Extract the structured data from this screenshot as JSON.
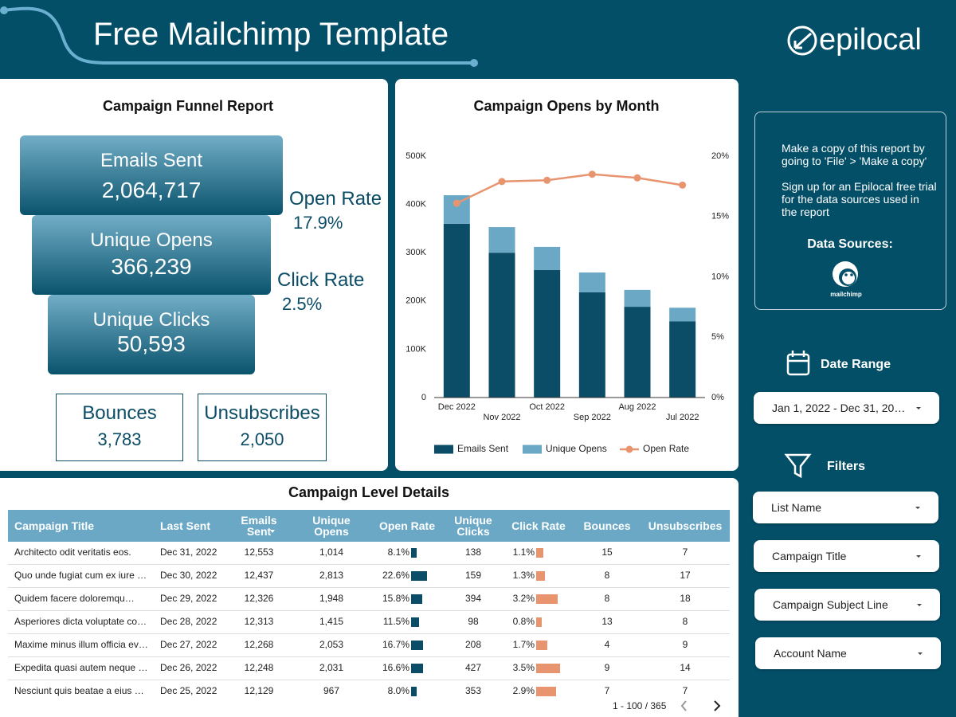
{
  "header": {
    "title": "Free Mailchimp Template",
    "logo": "epilocal"
  },
  "funnel": {
    "title": "Campaign Funnel Report",
    "stages": [
      {
        "label": "Emails Sent",
        "value": "2,064,717"
      },
      {
        "label": "Unique Opens",
        "value": "366,239"
      },
      {
        "label": "Unique Clicks",
        "value": "50,593"
      }
    ],
    "rates": [
      {
        "label": "Open Rate",
        "value": "17.9%"
      },
      {
        "label": "Click Rate",
        "value": "2.5%"
      }
    ],
    "totals": [
      {
        "label": "Bounces",
        "value": "3,783"
      },
      {
        "label": "Unsubscribes",
        "value": "2,050"
      }
    ]
  },
  "chart_data": {
    "type": "bar",
    "title": "Campaign Opens by Month",
    "stacked": true,
    "categories": [
      "Dec 2022",
      "Nov 2022",
      "Oct 2022",
      "Sep 2022",
      "Aug 2022",
      "Jul 2022"
    ],
    "series": [
      {
        "name": "Emails Sent",
        "color": "#0b4d66",
        "values": [
          360000,
          300000,
          264000,
          218000,
          188000,
          158000
        ]
      },
      {
        "name": "Unique Opens",
        "color": "#6aa8c6",
        "values": [
          59000,
          53000,
          48000,
          41000,
          35000,
          28000
        ]
      },
      {
        "name": "Open Rate",
        "type": "line",
        "axis": "y2",
        "color": "#e8956f",
        "values": [
          16.1,
          17.9,
          18.0,
          18.5,
          18.2,
          17.6
        ]
      }
    ],
    "ylim": [
      0,
      500000
    ],
    "yticks": [
      0,
      {
        "value": 100000,
        "label": "100K"
      },
      {
        "value": 200000,
        "label": "200K"
      },
      {
        "value": 300000,
        "label": "300K"
      },
      {
        "value": 400000,
        "label": "400K"
      },
      {
        "value": 500000,
        "label": "500K"
      }
    ],
    "y2lim": [
      0,
      20
    ],
    "y2ticks": [
      {
        "value": 0,
        "label": "0%"
      },
      {
        "value": 5,
        "label": "5%"
      },
      {
        "value": 10,
        "label": "10%"
      },
      {
        "value": 15,
        "label": "15%"
      },
      {
        "value": 20,
        "label": "20%"
      }
    ],
    "grid": false,
    "legend": "bottom"
  },
  "table": {
    "title": "Campaign Level Details",
    "columns": [
      "Campaign Title",
      "Last Sent",
      "Emails Sent",
      "Unique Opens",
      "Open Rate",
      "Unique Clicks",
      "Click Rate",
      "Bounces",
      "Unsubscribes"
    ],
    "rows": [
      [
        "Architecto odit veritatis eos.",
        "Dec 31, 2022",
        "12,553",
        "1,014",
        "8.1%",
        "138",
        "1.1%",
        "15",
        "7"
      ],
      [
        "Quo unde fugiat cum ex iure …",
        "Dec 30, 2022",
        "12,437",
        "2,813",
        "22.6%",
        "159",
        "1.3%",
        "8",
        "17"
      ],
      [
        "Quidem facere doloremqu…",
        "Dec 29, 2022",
        "12,326",
        "1,948",
        "15.8%",
        "394",
        "3.2%",
        "8",
        "18"
      ],
      [
        "Asperiores dicta voluptate co…",
        "Dec 28, 2022",
        "12,313",
        "1,415",
        "11.5%",
        "98",
        "0.8%",
        "13",
        "8"
      ],
      [
        "Maxime minus illum officia ev…",
        "Dec 27, 2022",
        "12,268",
        "2,053",
        "16.7%",
        "208",
        "1.7%",
        "4",
        "9"
      ],
      [
        "Expedita quasi autem neque …",
        "Dec 26, 2022",
        "12,248",
        "2,031",
        "16.6%",
        "427",
        "3.5%",
        "9",
        "14"
      ],
      [
        "Nesciunt quis beatae a eius …",
        "Dec 25, 2022",
        "12,129",
        "967",
        "8.0%",
        "353",
        "2.9%",
        "7",
        "7"
      ]
    ],
    "pagination": "1 - 100 / 365"
  },
  "sidebar": {
    "notes": [
      "Make a copy of this report by going to 'File' > 'Make a copy'",
      "Sign up for an Epilocal free trial for the data sources used in the report"
    ],
    "sources_title": "Data Sources:",
    "source": "mailchimp",
    "date_range": {
      "label": "Date Range",
      "value": "Jan 1, 2022 - Dec 31, 20…"
    },
    "filters": {
      "label": "Filters",
      "options": [
        "List Name",
        "Campaign Title",
        "Campaign Subject Line",
        "Account Name"
      ]
    }
  }
}
